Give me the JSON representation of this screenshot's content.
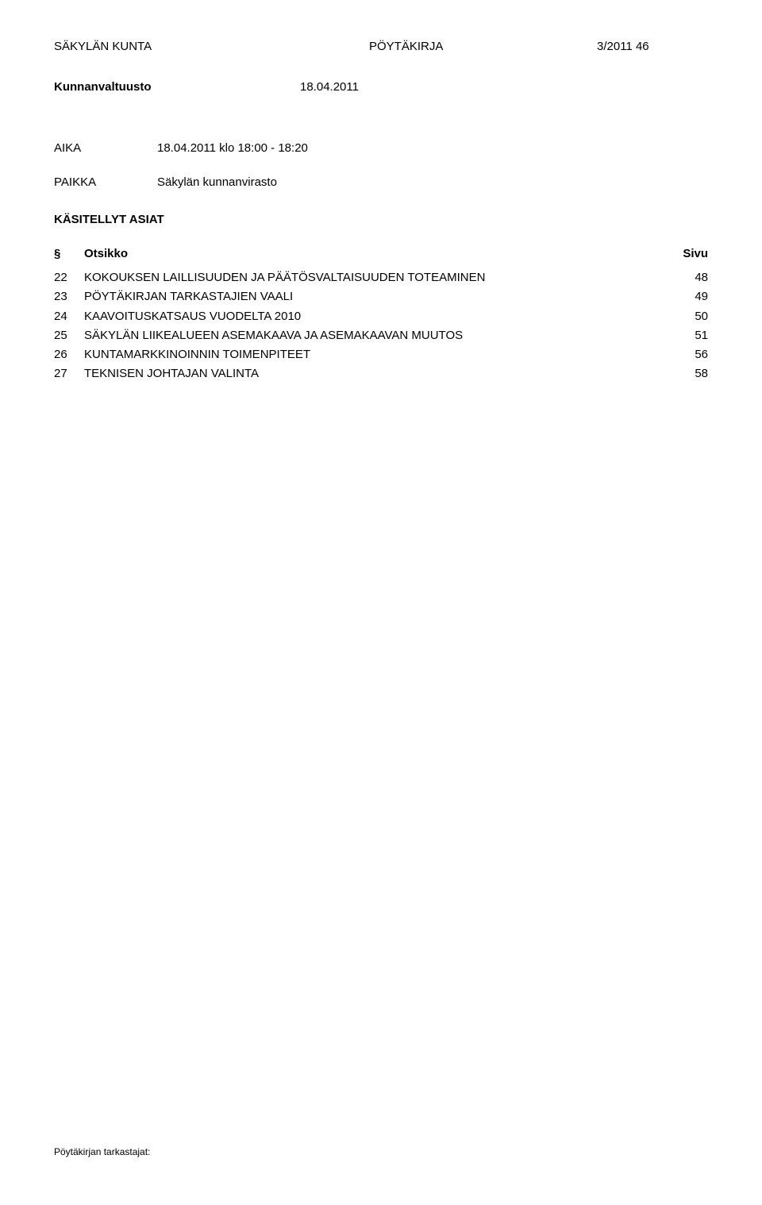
{
  "header": {
    "municipality": "SÄKYLÄN KUNTA",
    "doc_type": "PÖYTÄKIRJA",
    "doc_number": "3/2011",
    "page_number": "46"
  },
  "sub_header": {
    "body": "Kunnanvaltuusto",
    "date": "18.04.2011"
  },
  "aika": {
    "label": "AIKA",
    "value": "18.04.2011  klo 18:00 - 18:20"
  },
  "paikka": {
    "label": "PAIKKA",
    "value": "Säkylän kunnanvirasto"
  },
  "kasitellyt_label": "KÄSITELLYT ASIAT",
  "toc_header": {
    "num": "§",
    "title": "Otsikko",
    "page": "Sivu"
  },
  "toc": [
    {
      "num": "22",
      "title": "KOKOUKSEN LAILLISUUDEN JA PÄÄTÖSVALTAISUUDEN TOTEAMINEN",
      "page": "48"
    },
    {
      "num": "23",
      "title": "PÖYTÄKIRJAN TARKASTAJIEN VAALI",
      "page": "49"
    },
    {
      "num": "24",
      "title": "KAAVOITUSKATSAUS VUODELTA 2010",
      "page": "50"
    },
    {
      "num": "25",
      "title": "SÄKYLÄN LIIKEALUEEN ASEMAKAAVA JA ASEMAKAAVAN MUUTOS",
      "page": "51"
    },
    {
      "num": "26",
      "title": "KUNTAMARKKINOINNIN TOIMENPITEET",
      "page": "56"
    },
    {
      "num": "27",
      "title": "TEKNISEN JOHTAJAN VALINTA",
      "page": "58"
    }
  ],
  "footer": "Pöytäkirjan tarkastajat:"
}
